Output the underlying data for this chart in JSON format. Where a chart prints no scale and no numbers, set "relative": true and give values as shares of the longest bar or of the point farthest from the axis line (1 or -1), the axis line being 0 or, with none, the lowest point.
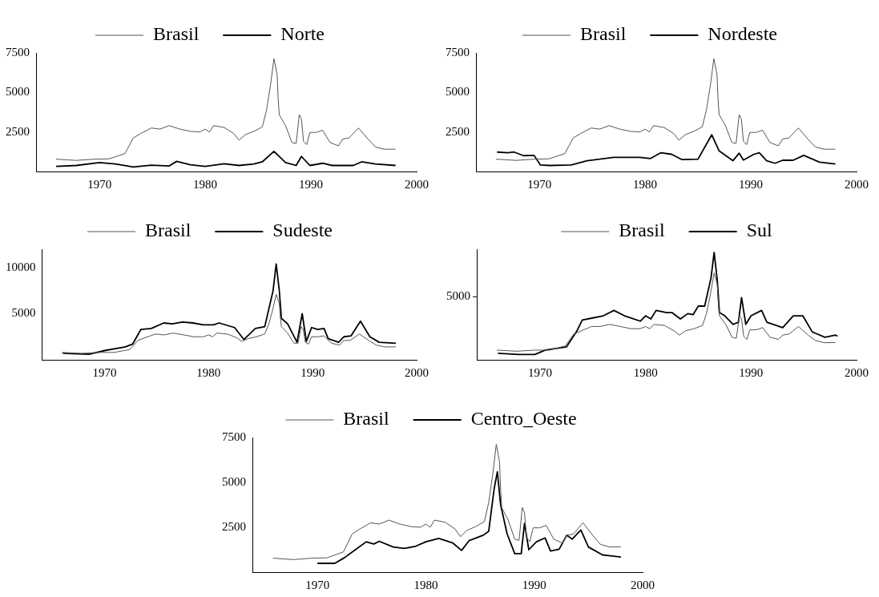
{
  "chart_data": [
    {
      "type": "line",
      "xlim": [
        1964,
        2000
      ],
      "xticks": [
        1970,
        1980,
        1990,
        2000
      ],
      "ylim": [
        0,
        7500
      ],
      "yticks": [
        2500,
        5000,
        7500
      ],
      "grid": false,
      "legend": "top",
      "marker": "none",
      "line_style": "solid",
      "series": [
        {
          "name": "Brasil",
          "color": "#555555",
          "x": [
            1965.9,
            1967.8,
            1969.5,
            1970.9,
            1972.4,
            1973.2,
            1973.9,
            1974.9,
            1975.7,
            1976.6,
            1977.6,
            1978.6,
            1979.5,
            1980.0,
            1980.4,
            1980.8,
            1981.8,
            1982.7,
            1983.2,
            1983.8,
            1984.6,
            1985.4,
            1985.8,
            1986.2,
            1986.5,
            1986.8,
            1986.9,
            1987.0,
            1987.6,
            1988.2,
            1988.6,
            1988.9,
            1989.1,
            1989.3,
            1989.6,
            1989.9,
            1990.5,
            1991.1,
            1991.8,
            1992.6,
            1993.0,
            1993.6,
            1994.5,
            1995.4,
            1996.1,
            1996.9,
            1998.0
          ],
          "values": [
            780,
            700,
            780,
            800,
            1130,
            2120,
            2400,
            2750,
            2680,
            2900,
            2680,
            2540,
            2500,
            2680,
            2500,
            2900,
            2780,
            2400,
            1980,
            2330,
            2540,
            2820,
            3880,
            5580,
            7130,
            6140,
            4590,
            3600,
            2900,
            1840,
            1770,
            3600,
            3320,
            1910,
            1700,
            2470,
            2470,
            2610,
            1840,
            1620,
            2050,
            2120,
            2750,
            2050,
            1550,
            1410,
            1410
          ]
        },
        {
          "name": "Norte",
          "color": "#000000",
          "x": [
            1965.9,
            1967.8,
            1970.0,
            1971.5,
            1973.2,
            1974.9,
            1976.6,
            1977.3,
            1978.6,
            1980.0,
            1981.8,
            1983.2,
            1984.6,
            1985.4,
            1986.5,
            1987.6,
            1988.6,
            1989.1,
            1989.9,
            1991.1,
            1992.0,
            1994.0,
            1994.8,
            1996.1,
            1998.0
          ],
          "values": [
            320,
            380,
            560,
            470,
            280,
            400,
            350,
            640,
            420,
            320,
            490,
            380,
            470,
            610,
            1270,
            560,
            380,
            950,
            380,
            520,
            380,
            380,
            610,
            470,
            380
          ]
        }
      ]
    },
    {
      "type": "line",
      "xlim": [
        1964,
        2000
      ],
      "xticks": [
        1970,
        1980,
        1990,
        2000
      ],
      "ylim": [
        0,
        7500
      ],
      "yticks": [
        2500,
        5000,
        7500
      ],
      "grid": false,
      "legend": "top",
      "marker": "none",
      "line_style": "solid",
      "series": [
        {
          "name": "Brasil",
          "color": "#555555",
          "x": [
            1965.9,
            1967.8,
            1969.5,
            1970.9,
            1972.4,
            1973.2,
            1973.9,
            1974.9,
            1975.7,
            1976.6,
            1977.6,
            1978.6,
            1979.5,
            1980.0,
            1980.4,
            1980.8,
            1981.8,
            1982.7,
            1983.2,
            1983.8,
            1984.6,
            1985.4,
            1985.8,
            1986.2,
            1986.5,
            1986.8,
            1986.9,
            1987.0,
            1987.6,
            1988.2,
            1988.6,
            1988.9,
            1989.1,
            1989.3,
            1989.6,
            1989.9,
            1990.5,
            1991.1,
            1991.8,
            1992.6,
            1993.0,
            1993.6,
            1994.5,
            1995.4,
            1996.1,
            1996.9,
            1998.0
          ],
          "values": [
            780,
            700,
            780,
            800,
            1130,
            2120,
            2400,
            2750,
            2680,
            2900,
            2680,
            2540,
            2500,
            2680,
            2500,
            2900,
            2780,
            2400,
            1980,
            2330,
            2540,
            2820,
            3880,
            5580,
            7130,
            6140,
            4590,
            3600,
            2900,
            1840,
            1770,
            3600,
            3320,
            1910,
            1700,
            2470,
            2470,
            2610,
            1840,
            1620,
            2050,
            2120,
            2750,
            2050,
            1550,
            1410,
            1410
          ]
        },
        {
          "name": "Nordeste",
          "color": "#000000",
          "x": [
            1966.0,
            1967.0,
            1967.6,
            1968.5,
            1969.5,
            1970.1,
            1971.0,
            1973.0,
            1974.5,
            1977.0,
            1979.5,
            1980.5,
            1981.5,
            1982.5,
            1983.5,
            1985.0,
            1986.3,
            1987.0,
            1988.3,
            1988.9,
            1989.3,
            1990.3,
            1990.8,
            1991.5,
            1992.3,
            1993.0,
            1994.0,
            1995.0,
            1996.5,
            1998.0
          ],
          "values": [
            1230,
            1180,
            1230,
            1000,
            1020,
            410,
            380,
            410,
            680,
            890,
            890,
            820,
            1190,
            1090,
            750,
            780,
            2320,
            1300,
            680,
            1160,
            720,
            1090,
            1190,
            680,
            520,
            710,
            710,
            1020,
            590,
            480
          ]
        }
      ]
    },
    {
      "type": "line",
      "xlim": [
        1964,
        2000
      ],
      "xticks": [
        1970,
        1980,
        1990,
        2000
      ],
      "ylim": [
        0,
        12000
      ],
      "yticks": [
        5000,
        10000
      ],
      "grid": false,
      "legend": "top",
      "marker": "none",
      "line_style": "solid",
      "series": [
        {
          "name": "Brasil",
          "color": "#555555",
          "x": [
            1965.9,
            1967.8,
            1969.5,
            1970.9,
            1972.4,
            1973.2,
            1973.9,
            1974.9,
            1975.7,
            1976.6,
            1977.6,
            1978.6,
            1979.5,
            1980.0,
            1980.4,
            1980.8,
            1981.8,
            1982.7,
            1983.2,
            1983.8,
            1984.6,
            1985.4,
            1985.8,
            1986.2,
            1986.5,
            1986.8,
            1986.9,
            1987.0,
            1987.6,
            1988.2,
            1988.6,
            1988.9,
            1989.1,
            1989.3,
            1989.6,
            1989.9,
            1990.5,
            1991.1,
            1991.8,
            1992.6,
            1993.0,
            1993.6,
            1994.5,
            1995.4,
            1996.1,
            1996.9,
            1998.0
          ],
          "values": [
            800,
            700,
            800,
            800,
            1100,
            2100,
            2400,
            2800,
            2700,
            2900,
            2700,
            2500,
            2500,
            2700,
            2500,
            2900,
            2800,
            2400,
            2000,
            2300,
            2500,
            2800,
            3900,
            5600,
            7100,
            6100,
            4600,
            3600,
            2900,
            1800,
            1800,
            3600,
            3300,
            1900,
            1700,
            2500,
            2500,
            2600,
            1800,
            1600,
            2100,
            2100,
            2800,
            2100,
            1600,
            1400,
            1400
          ]
        },
        {
          "name": "Sudeste",
          "color": "#000000",
          "x": [
            1966.0,
            1968.5,
            1970.0,
            1972.0,
            1972.7,
            1973.5,
            1974.5,
            1975.7,
            1976.5,
            1977.5,
            1978.5,
            1979.5,
            1980.5,
            1981.0,
            1982.5,
            1983.4,
            1984.5,
            1985.4,
            1986.2,
            1986.5,
            1986.8,
            1987.0,
            1987.6,
            1988.5,
            1989.0,
            1989.4,
            1989.9,
            1990.5,
            1991.1,
            1991.5,
            1992.5,
            1993.0,
            1993.7,
            1994.6,
            1995.5,
            1996.4,
            1998.0
          ],
          "values": [
            700,
            600,
            1000,
            1400,
            1700,
            3300,
            3400,
            4000,
            3900,
            4100,
            4000,
            3800,
            3800,
            4000,
            3500,
            2200,
            3400,
            3600,
            7500,
            10400,
            7500,
            4500,
            3900,
            1900,
            5000,
            2000,
            3500,
            3300,
            3400,
            2300,
            1900,
            2500,
            2600,
            4200,
            2500,
            1900,
            1800
          ]
        }
      ]
    },
    {
      "type": "line",
      "xlim": [
        1964,
        2000
      ],
      "xticks": [
        1970,
        1980,
        1990,
        2000
      ],
      "relative": true,
      "grid": false,
      "legend": "top",
      "marker": "none",
      "line_style": "solid",
      "annotations": [
        "5000"
      ],
      "series": [
        {
          "name": "Brasil",
          "color": "#555555",
          "x": [
            1965.9,
            1967.8,
            1969.5,
            1970.9,
            1972.4,
            1973.2,
            1973.9,
            1974.9,
            1975.7,
            1976.6,
            1977.6,
            1978.6,
            1979.5,
            1980.0,
            1980.4,
            1980.8,
            1981.8,
            1982.7,
            1983.2,
            1983.8,
            1984.6,
            1985.4,
            1985.8,
            1986.2,
            1986.5,
            1986.8,
            1986.9,
            1987.0,
            1987.6,
            1988.2,
            1988.6,
            1988.9,
            1989.1,
            1989.3,
            1989.6,
            1989.9,
            1990.5,
            1991.1,
            1991.8,
            1992.6,
            1993.0,
            1993.6,
            1994.5,
            1995.4,
            1996.1,
            1996.9,
            1998.0
          ],
          "values": [
            0.09,
            0.08,
            0.09,
            0.09,
            0.13,
            0.24,
            0.27,
            0.31,
            0.31,
            0.33,
            0.31,
            0.29,
            0.29,
            0.31,
            0.29,
            0.33,
            0.32,
            0.27,
            0.23,
            0.27,
            0.29,
            0.32,
            0.44,
            0.64,
            0.81,
            0.7,
            0.52,
            0.41,
            0.33,
            0.21,
            0.2,
            0.41,
            0.38,
            0.22,
            0.19,
            0.28,
            0.28,
            0.3,
            0.21,
            0.19,
            0.23,
            0.24,
            0.31,
            0.23,
            0.18,
            0.16,
            0.16
          ]
        },
        {
          "name": "Sul",
          "color": "#000000",
          "x": [
            1966.0,
            1968.0,
            1969.5,
            1970.5,
            1972.5,
            1973.5,
            1974.0,
            1975.0,
            1976.0,
            1977.0,
            1978.0,
            1979.5,
            1980.0,
            1980.5,
            1981.0,
            1982.0,
            1982.5,
            1983.3,
            1984.0,
            1984.5,
            1985.0,
            1985.6,
            1986.2,
            1986.5,
            1986.8,
            1987.0,
            1987.5,
            1988.3,
            1988.8,
            1989.1,
            1989.5,
            1990.0,
            1991.0,
            1991.5,
            1993.0,
            1994.0,
            1994.9,
            1995.8,
            1997.0,
            1998.0,
            1998.2
          ],
          "values": [
            0.06,
            0.05,
            0.05,
            0.09,
            0.12,
            0.27,
            0.37,
            0.39,
            0.41,
            0.46,
            0.41,
            0.36,
            0.41,
            0.38,
            0.46,
            0.44,
            0.44,
            0.38,
            0.43,
            0.42,
            0.5,
            0.5,
            0.76,
            1,
            0.74,
            0.44,
            0.41,
            0.33,
            0.35,
            0.58,
            0.33,
            0.41,
            0.46,
            0.35,
            0.3,
            0.41,
            0.41,
            0.26,
            0.21,
            0.23,
            0.22
          ]
        }
      ]
    },
    {
      "type": "line",
      "xlim": [
        1964,
        2000
      ],
      "xticks": [
        1970,
        1980,
        1990,
        2000
      ],
      "ylim": [
        0,
        7500
      ],
      "yticks": [
        2500,
        5000,
        7500
      ],
      "grid": false,
      "legend": "top",
      "marker": "none",
      "line_style": "solid",
      "series": [
        {
          "name": "Brasil",
          "color": "#555555",
          "x": [
            1965.9,
            1967.8,
            1969.5,
            1970.9,
            1972.4,
            1973.2,
            1973.9,
            1974.9,
            1975.7,
            1976.6,
            1977.6,
            1978.6,
            1979.5,
            1980.0,
            1980.4,
            1980.8,
            1981.8,
            1982.7,
            1983.2,
            1983.8,
            1984.6,
            1985.4,
            1985.8,
            1986.2,
            1986.5,
            1986.8,
            1986.9,
            1987.0,
            1987.6,
            1988.2,
            1988.6,
            1988.9,
            1989.1,
            1989.3,
            1989.6,
            1989.9,
            1990.5,
            1991.1,
            1991.8,
            1992.6,
            1993.0,
            1993.6,
            1994.5,
            1995.4,
            1996.1,
            1996.9,
            1998.0
          ],
          "values": [
            780,
            700,
            780,
            800,
            1130,
            2120,
            2400,
            2750,
            2680,
            2900,
            2680,
            2540,
            2500,
            2680,
            2500,
            2900,
            2780,
            2400,
            1980,
            2330,
            2540,
            2820,
            3880,
            5580,
            7130,
            6140,
            4590,
            3600,
            2900,
            1840,
            1770,
            3600,
            3320,
            1910,
            1700,
            2470,
            2470,
            2610,
            1840,
            1620,
            2050,
            2120,
            2750,
            2050,
            1550,
            1410,
            1410
          ]
        },
        {
          "name": "Centro_Oeste",
          "color": "#000000",
          "x": [
            1970.0,
            1971.6,
            1972.5,
            1973.5,
            1974.5,
            1975.2,
            1975.7,
            1977.0,
            1978.0,
            1979.0,
            1980.0,
            1981.2,
            1982.5,
            1983.3,
            1984.0,
            1985.3,
            1985.8,
            1986.3,
            1986.6,
            1986.9,
            1987.5,
            1988.2,
            1988.8,
            1989.1,
            1989.5,
            1990.2,
            1991.0,
            1991.5,
            1992.3,
            1993.0,
            1993.5,
            1994.3,
            1995.0,
            1996.3,
            1998.0
          ],
          "values": [
            490,
            490,
            810,
            1250,
            1690,
            1570,
            1720,
            1400,
            1320,
            1430,
            1690,
            1880,
            1620,
            1210,
            1760,
            2060,
            2280,
            4630,
            5590,
            3750,
            2130,
            1030,
            1030,
            2720,
            1250,
            1690,
            1910,
            1180,
            1280,
            2060,
            1840,
            2350,
            1400,
            960,
            840
          ]
        }
      ]
    }
  ]
}
